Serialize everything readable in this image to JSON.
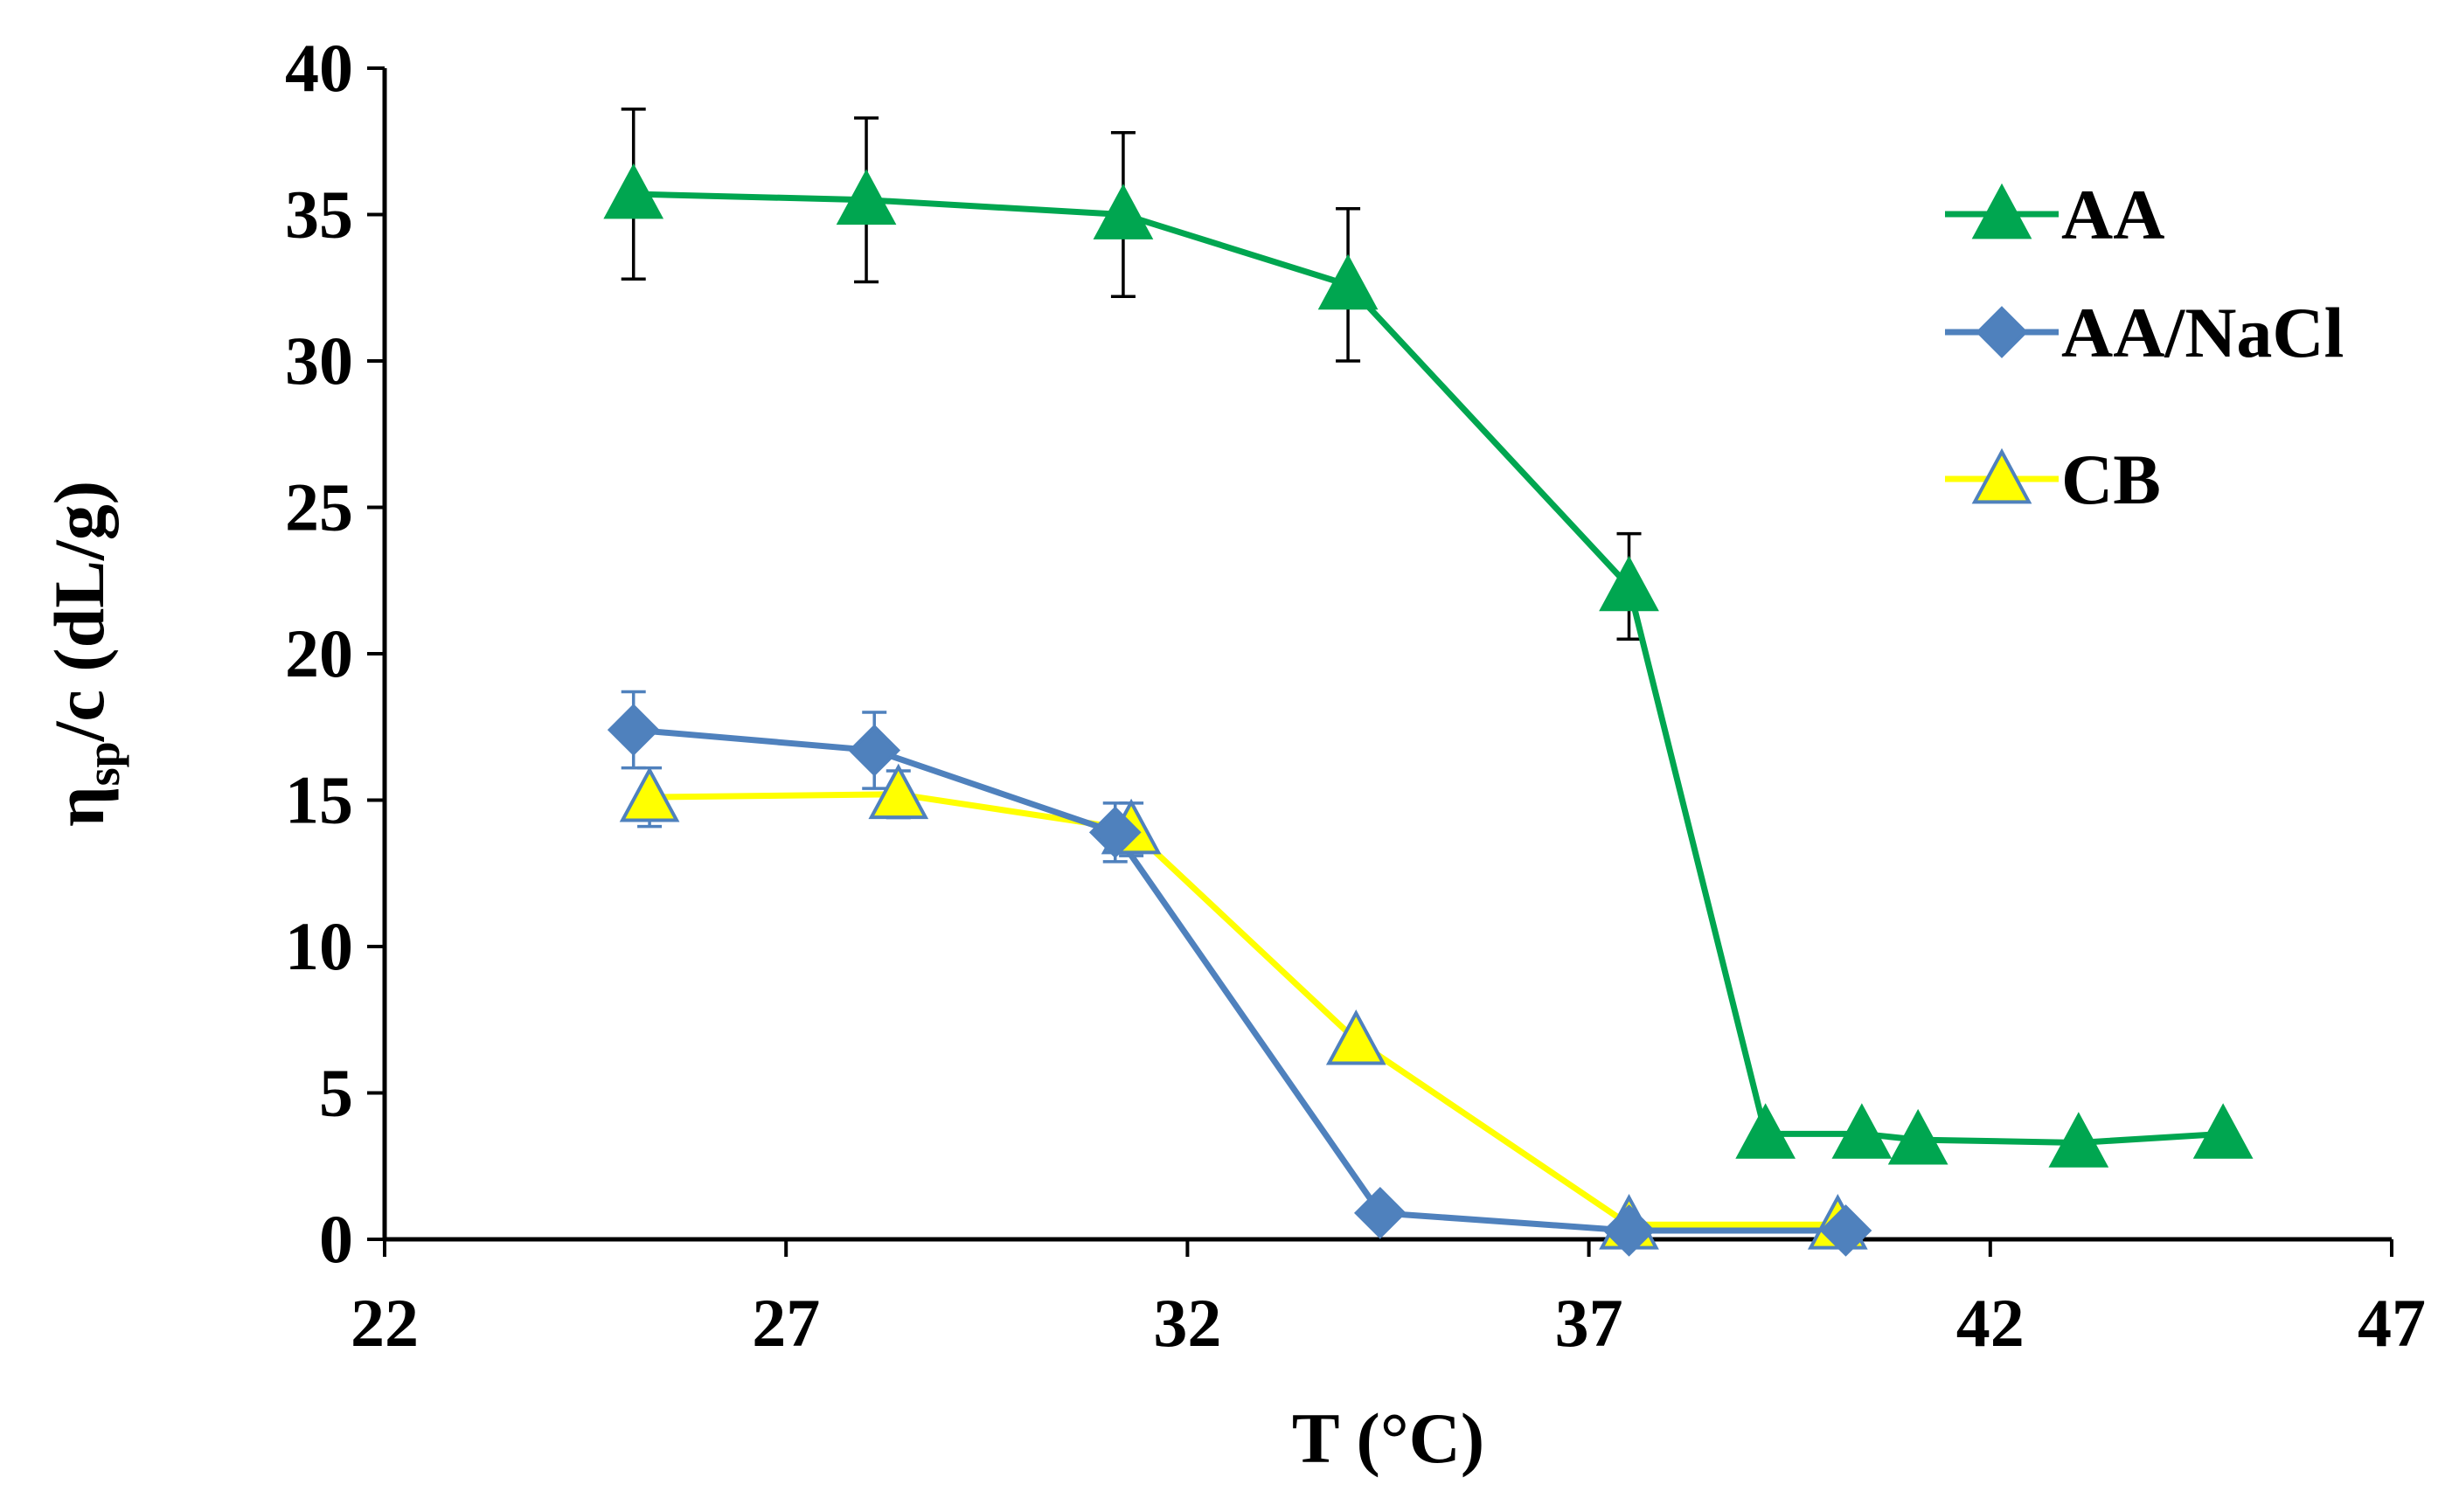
{
  "chart_data": {
    "type": "line",
    "title": "",
    "xlabel": "T (°C)",
    "ylabel": {
      "base": "η",
      "sub": "sp",
      "rest": "/c (dL/g)"
    },
    "xlim": [
      22,
      47
    ],
    "ylim": [
      0,
      40
    ],
    "xticks": [
      22,
      27,
      32,
      37,
      42,
      47
    ],
    "yticks": [
      0,
      5,
      10,
      15,
      20,
      25,
      30,
      35,
      40
    ],
    "grid": false,
    "legend_position": "right",
    "series": [
      {
        "name": "AA",
        "color": "#00A650",
        "marker": "triangle",
        "marker_fill": "#00A650",
        "marker_stroke": "#00A650",
        "x": [
          25.1,
          28.0,
          31.2,
          34.0,
          37.5,
          39.2,
          40.4,
          41.1,
          43.1,
          44.9
        ],
        "y": [
          35.7,
          35.5,
          35.0,
          32.6,
          22.3,
          3.6,
          3.6,
          3.4,
          3.3,
          3.6
        ],
        "err": [
          2.9,
          2.8,
          2.8,
          2.6,
          1.8,
          null,
          null,
          null,
          null,
          null
        ]
      },
      {
        "name": "AA/NaCl",
        "color": "#4F81BD",
        "marker": "diamond",
        "marker_fill": "#4F81BD",
        "marker_stroke": "#4F81BD",
        "x": [
          25.1,
          28.1,
          31.1,
          34.4,
          37.5,
          40.2
        ],
        "y": [
          17.4,
          16.7,
          13.9,
          0.9,
          0.3,
          0.3
        ],
        "err": [
          1.3,
          1.3,
          1.0,
          null,
          null,
          null
        ]
      },
      {
        "name": "CB",
        "color": "#FFFF00",
        "marker": "triangle",
        "marker_fill": "#FFFF00",
        "marker_stroke": "#4F81BD",
        "x": [
          25.3,
          28.4,
          31.3,
          34.1,
          37.5,
          40.1
        ],
        "y": [
          15.1,
          15.2,
          14.0,
          6.8,
          0.5,
          0.5
        ],
        "err": [
          1.0,
          0.8,
          0.9,
          null,
          null,
          null
        ]
      }
    ]
  }
}
